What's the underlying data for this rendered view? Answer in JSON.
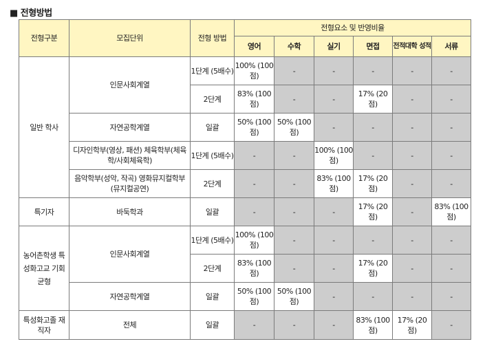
{
  "title": "■ 전형방법",
  "headers": {
    "category": "전형구분",
    "unit": "모집단위",
    "method": "전형 방법",
    "elements": "전형요소 및 반영비율",
    "cols": [
      "영어",
      "수학",
      "실기",
      "면접",
      "전적대학 성적",
      "서류"
    ]
  },
  "groups": {
    "general": "일반 학사",
    "special": "특기자",
    "rural": "농어촌학생 특성화고교 기회균형",
    "worker": "특성화고졸 재직자"
  },
  "rows": [
    {
      "unit": "인문사회계열",
      "method": "1단계 (5배수)",
      "cells": [
        "100% (100점)",
        "-",
        "-",
        "-",
        "-",
        "-"
      ]
    },
    {
      "method": "2단계",
      "cells": [
        "83% (100점)",
        "-",
        "-",
        "17% (20점)",
        "-",
        "-"
      ]
    },
    {
      "unit": "자연공학계열",
      "method": "일괄",
      "cells": [
        "50% (100점)",
        "50% (100점)",
        "-",
        "-",
        "-",
        "-"
      ]
    },
    {
      "unit": "디자인학부(영상, 패션) 체육학부(체육학/사회체육학)",
      "method": "1단계 (5배수)",
      "cells": [
        "-",
        "-",
        "100% (100점)",
        "-",
        "-",
        "-"
      ]
    },
    {
      "unit": "음악학부(성악, 작곡) 영화뮤지컬학부(뮤지컬공연)",
      "method": "2단계",
      "cells": [
        "-",
        "-",
        "83% (100점)",
        "17% (20점)",
        "-",
        "-"
      ]
    },
    {
      "unit": "바둑학과",
      "method": "일괄",
      "cells": [
        "-",
        "-",
        "-",
        "17% (20점)",
        "-",
        "83% (100점)"
      ]
    },
    {
      "unit": "인문사회계열",
      "method": "1단계 (5배수)",
      "cells": [
        "100% (100점)",
        "-",
        "-",
        "-",
        "-",
        "-"
      ]
    },
    {
      "method": "2단계",
      "cells": [
        "83% (100점)",
        "-",
        "-",
        "17% (20점)",
        "-",
        "-"
      ]
    },
    {
      "unit": "자연공학계열",
      "method": "일괄",
      "cells": [
        "50% (100점)",
        "50% (100점)",
        "-",
        "-",
        "-",
        "-"
      ]
    },
    {
      "unit": "전체",
      "method": "일괄",
      "cells": [
        "-",
        "-",
        "-",
        "83% (100점)",
        "17% (20점)",
        "-"
      ]
    }
  ]
}
